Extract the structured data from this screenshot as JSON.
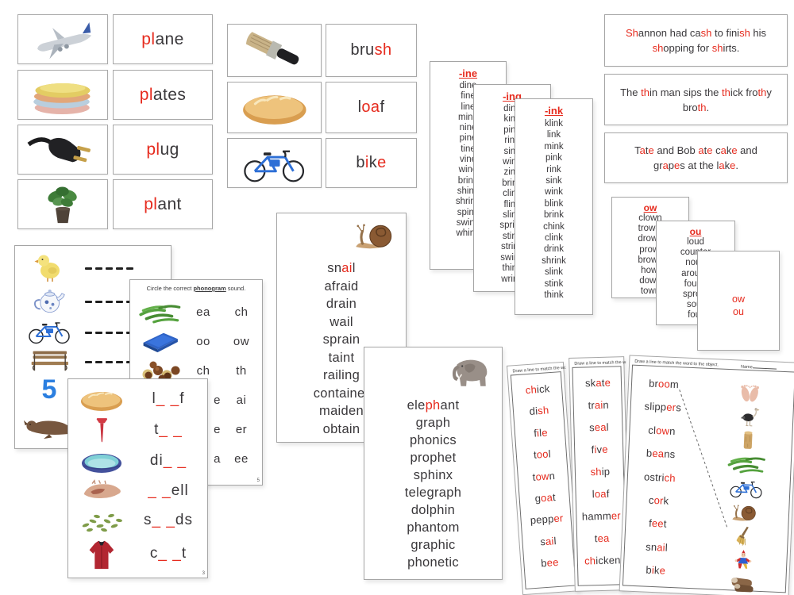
{
  "colors": {
    "red": "#e62b1e",
    "text": "#3a383b",
    "blue": "#2b7fe0",
    "card_border": "#a8a8a8"
  },
  "pl_panel": {
    "cards": [
      {
        "icon": "plane-image",
        "word": [
          [
            "pl",
            1
          ],
          [
            "ane",
            0
          ]
        ]
      },
      {
        "icon": "plates-image",
        "word": [
          [
            "pl",
            1
          ],
          [
            "ates",
            0
          ]
        ]
      },
      {
        "icon": "plug-image",
        "word": [
          [
            "pl",
            1
          ],
          [
            "ug",
            0
          ]
        ]
      },
      {
        "icon": "plant-image",
        "word": [
          [
            "pl",
            1
          ],
          [
            "ant",
            0
          ]
        ]
      }
    ]
  },
  "phonogram_panel": {
    "cards": [
      {
        "icon": "brush-image",
        "word": [
          [
            "bru",
            0
          ],
          [
            "sh",
            1
          ]
        ]
      },
      {
        "icon": "loaf-image",
        "word": [
          [
            "l",
            0
          ],
          [
            "oa",
            1
          ],
          [
            "f",
            0
          ]
        ]
      },
      {
        "icon": "bike-image",
        "word": [
          [
            "b",
            0
          ],
          [
            "i",
            1
          ],
          [
            "k",
            0
          ],
          [
            "e",
            1
          ]
        ]
      }
    ]
  },
  "sentence_cards": [
    {
      "lines": [
        [
          [
            "Sh",
            1
          ],
          [
            "annon had ca",
            0
          ],
          [
            "sh",
            1
          ],
          [
            " to fini",
            0
          ],
          [
            "sh",
            1
          ],
          [
            " his",
            0
          ]
        ],
        [
          [
            "sh",
            1
          ],
          [
            "opping for ",
            0
          ],
          [
            "sh",
            1
          ],
          [
            "irts.",
            0
          ]
        ]
      ]
    },
    {
      "lines": [
        [
          [
            "The ",
            0
          ],
          [
            "th",
            1
          ],
          [
            "in man sips the ",
            0
          ],
          [
            "th",
            1
          ],
          [
            "ick fro",
            0
          ],
          [
            "th",
            1
          ],
          [
            "y",
            0
          ]
        ],
        [
          [
            "bro",
            0
          ],
          [
            "th",
            1
          ],
          [
            ".",
            0
          ]
        ]
      ]
    },
    {
      "lines": [
        [
          [
            "T",
            0
          ],
          [
            "a",
            1
          ],
          [
            "t",
            0
          ],
          [
            "e",
            1
          ],
          [
            " and Bob ",
            0
          ],
          [
            "a",
            1
          ],
          [
            "t",
            0
          ],
          [
            "e",
            1
          ],
          [
            " c",
            0
          ],
          [
            "a",
            1
          ],
          [
            "k",
            0
          ],
          [
            "e",
            1
          ],
          [
            " and",
            0
          ]
        ],
        [
          [
            "gr",
            0
          ],
          [
            "a",
            1
          ],
          [
            "p",
            0
          ],
          [
            "e",
            1
          ],
          [
            "s at the l",
            0
          ],
          [
            "a",
            1
          ],
          [
            "k",
            0
          ],
          [
            "e",
            1
          ],
          [
            ".",
            0
          ]
        ]
      ]
    }
  ],
  "word_list_cards": [
    {
      "title": "-ine",
      "words": [
        "dine",
        "fine",
        "line",
        "mine",
        "nine",
        "pine",
        "tine",
        "vine",
        "wine",
        "brine",
        "shine",
        "shrine",
        "spine",
        "swine",
        "whine"
      ]
    },
    {
      "title": "-ing",
      "words": [
        "ding",
        "king",
        "ping",
        "ring",
        "sing",
        "wing",
        "zing",
        "bring",
        "cling",
        "fling",
        "sling",
        "spring",
        "sting",
        "string",
        "swing",
        "thing",
        "wring"
      ]
    },
    {
      "title": "-ink",
      "words": [
        "klink",
        "link",
        "mink",
        "pink",
        "rink",
        "sink",
        "wink",
        "blink",
        "brink",
        "chink",
        "clink",
        "drink",
        "shrink",
        "slink",
        "stink",
        "think"
      ]
    }
  ],
  "ow_ou_cards": [
    {
      "title": "ow",
      "words": [
        "clown",
        "trowel",
        "drown",
        "prowl",
        "brown",
        "howl",
        "down",
        "town"
      ]
    },
    {
      "title": "ou",
      "words": [
        "loud",
        "counter",
        "noun",
        "around",
        "found",
        "sprout",
        "sour",
        "four"
      ]
    },
    {
      "lines": [
        "ow",
        "ou"
      ]
    }
  ],
  "blanks_sheet": {
    "five_label": "5",
    "rows": [
      {
        "icon": "chick-image",
        "dashes": 5
      },
      {
        "icon": "teapot-image",
        "dashes": 6
      },
      {
        "icon": "bike-image",
        "dashes": 6
      },
      {
        "icon": "bench-image",
        "dashes": 6
      },
      {
        "icon": "number-five",
        "dashes": 4
      },
      {
        "icon": "seal-image",
        "dashes": 4
      }
    ]
  },
  "circle_sheet": {
    "title": [
      [
        "Circle the correct ",
        0
      ],
      [
        "phonogram",
        2
      ],
      [
        " sound.",
        0
      ]
    ],
    "rows": [
      {
        "icon": "green-beans-image",
        "options": [
          "ea",
          "ch"
        ]
      },
      {
        "icon": "blue-book-image",
        "options": [
          "oo",
          "ow"
        ]
      },
      {
        "icon": "chestnuts-image",
        "options": [
          "ch",
          "th"
        ]
      },
      {
        "icon": null,
        "options": [
          "e",
          "ai"
        ]
      },
      {
        "icon": null,
        "options": [
          "e",
          "er"
        ]
      },
      {
        "icon": null,
        "options": [
          "a",
          "ee"
        ]
      }
    ],
    "page_number": "5"
  },
  "fill_blanks_sheet": {
    "rows": [
      {
        "icon": "loaf-image",
        "word": [
          [
            "l",
            0
          ],
          [
            "_ _",
            1
          ],
          [
            "f",
            0
          ]
        ]
      },
      {
        "icon": "golf-tee-image",
        "word": [
          [
            "t",
            0
          ],
          [
            "_ _",
            1
          ]
        ]
      },
      {
        "icon": "dish-image",
        "word": [
          [
            "di",
            0
          ],
          [
            "_ _",
            1
          ]
        ]
      },
      {
        "icon": "shell-image",
        "word": [
          [
            "_ _",
            1
          ],
          [
            "ell",
            0
          ]
        ]
      },
      {
        "icon": "seeds-image",
        "word": [
          [
            "s",
            0
          ],
          [
            "_ _",
            1
          ],
          [
            "ds",
            0
          ]
        ]
      },
      {
        "icon": "coat-image",
        "word": [
          [
            "c",
            0
          ],
          [
            "_ _",
            1
          ],
          [
            "t",
            0
          ]
        ]
      }
    ],
    "page_number": "3"
  },
  "snail_card": {
    "icon": "snail-image",
    "words": [
      [
        [
          "sn",
          0
        ],
        [
          "ai",
          1
        ],
        [
          "l",
          0
        ]
      ],
      [
        [
          "afraid",
          0
        ]
      ],
      [
        [
          "drain",
          0
        ]
      ],
      [
        [
          "wail",
          0
        ]
      ],
      [
        [
          "sprain",
          0
        ]
      ],
      [
        [
          "taint",
          0
        ]
      ],
      [
        [
          "railing",
          0
        ]
      ],
      [
        [
          "container",
          0
        ]
      ],
      [
        [
          "maiden",
          0
        ]
      ],
      [
        [
          "obtain",
          0
        ]
      ]
    ]
  },
  "elephant_card": {
    "icon": "elephant-image",
    "words": [
      [
        [
          "ele",
          0
        ],
        [
          "ph",
          1
        ],
        [
          "ant",
          0
        ]
      ],
      [
        [
          "graph",
          0
        ]
      ],
      [
        [
          "phonics",
          0
        ]
      ],
      [
        [
          "prophet",
          0
        ]
      ],
      [
        [
          "sphinx",
          0
        ]
      ],
      [
        [
          "telegraph",
          0
        ]
      ],
      [
        [
          "dolphin",
          0
        ]
      ],
      [
        [
          "phantom",
          0
        ]
      ],
      [
        [
          "graphic",
          0
        ]
      ],
      [
        [
          "phonetic",
          0
        ]
      ]
    ]
  },
  "match_sheets": [
    {
      "header": "Draw a line to match the word to the object.",
      "words": [
        [
          [
            "ch",
            1
          ],
          [
            "ick",
            0
          ]
        ],
        [
          [
            "di",
            0
          ],
          [
            "sh",
            1
          ]
        ],
        [
          [
            "f",
            0
          ],
          [
            "i",
            1
          ],
          [
            "l",
            0
          ],
          [
            "e",
            1
          ]
        ],
        [
          [
            "t",
            0
          ],
          [
            "oo",
            1
          ],
          [
            "l",
            0
          ]
        ],
        [
          [
            "t",
            0
          ],
          [
            "ow",
            1
          ],
          [
            "n",
            0
          ]
        ],
        [
          [
            "g",
            0
          ],
          [
            "oa",
            1
          ],
          [
            "t",
            0
          ]
        ],
        [
          [
            "pepp",
            0
          ],
          [
            "er",
            1
          ]
        ],
        [
          [
            "s",
            0
          ],
          [
            "ai",
            1
          ],
          [
            "l",
            0
          ]
        ],
        [
          [
            "b",
            0
          ],
          [
            "ee",
            1
          ]
        ]
      ]
    },
    {
      "header": "Draw a line to match the word to the object.",
      "words": [
        [
          [
            "sk",
            0
          ],
          [
            "a",
            1
          ],
          [
            "t",
            0
          ],
          [
            "e",
            1
          ]
        ],
        [
          [
            "tr",
            0
          ],
          [
            "ai",
            1
          ],
          [
            "n",
            0
          ]
        ],
        [
          [
            "s",
            0
          ],
          [
            "ea",
            1
          ],
          [
            "l",
            0
          ]
        ],
        [
          [
            "f",
            0
          ],
          [
            "i",
            1
          ],
          [
            "v",
            0
          ],
          [
            "e",
            1
          ]
        ],
        [
          [
            "sh",
            1
          ],
          [
            "ip",
            0
          ]
        ],
        [
          [
            "l",
            0
          ],
          [
            "oa",
            1
          ],
          [
            "f",
            0
          ]
        ],
        [
          [
            "hamm",
            0
          ],
          [
            "er",
            1
          ]
        ],
        [
          [
            "t",
            0
          ],
          [
            "ea",
            1
          ]
        ],
        [
          [
            "ch",
            1
          ],
          [
            "icken",
            0
          ]
        ]
      ]
    },
    {
      "header": "Draw a line to match the word to the object.",
      "name_label": "Name",
      "words": [
        [
          [
            "br",
            0
          ],
          [
            "oo",
            1
          ],
          [
            "m",
            0
          ]
        ],
        [
          [
            "slipp",
            0
          ],
          [
            "er",
            1
          ],
          [
            "s",
            0
          ]
        ],
        [
          [
            "cl",
            0
          ],
          [
            "ow",
            1
          ],
          [
            "n",
            0
          ]
        ],
        [
          [
            "b",
            0
          ],
          [
            "ea",
            1
          ],
          [
            "ns",
            0
          ]
        ],
        [
          [
            "ostri",
            0
          ],
          [
            "ch",
            1
          ]
        ],
        [
          [
            "c",
            0
          ],
          [
            "or",
            1
          ],
          [
            "k",
            0
          ]
        ],
        [
          [
            "f",
            0
          ],
          [
            "ee",
            1
          ],
          [
            "t",
            0
          ]
        ],
        [
          [
            "sn",
            0
          ],
          [
            "ai",
            1
          ],
          [
            "l",
            0
          ]
        ],
        [
          [
            "b",
            0
          ],
          [
            "i",
            1
          ],
          [
            "k",
            0
          ],
          [
            "e",
            1
          ]
        ]
      ],
      "icons": [
        "feet-image",
        "ostrich-image",
        "cork-image",
        "green-beans-image",
        "bike-image",
        "snail-image",
        "broom-image",
        "clown-image",
        "slippers-image"
      ],
      "drawn_line": {
        "from_word": "broom",
        "to_icon": "broom-image"
      }
    }
  ]
}
